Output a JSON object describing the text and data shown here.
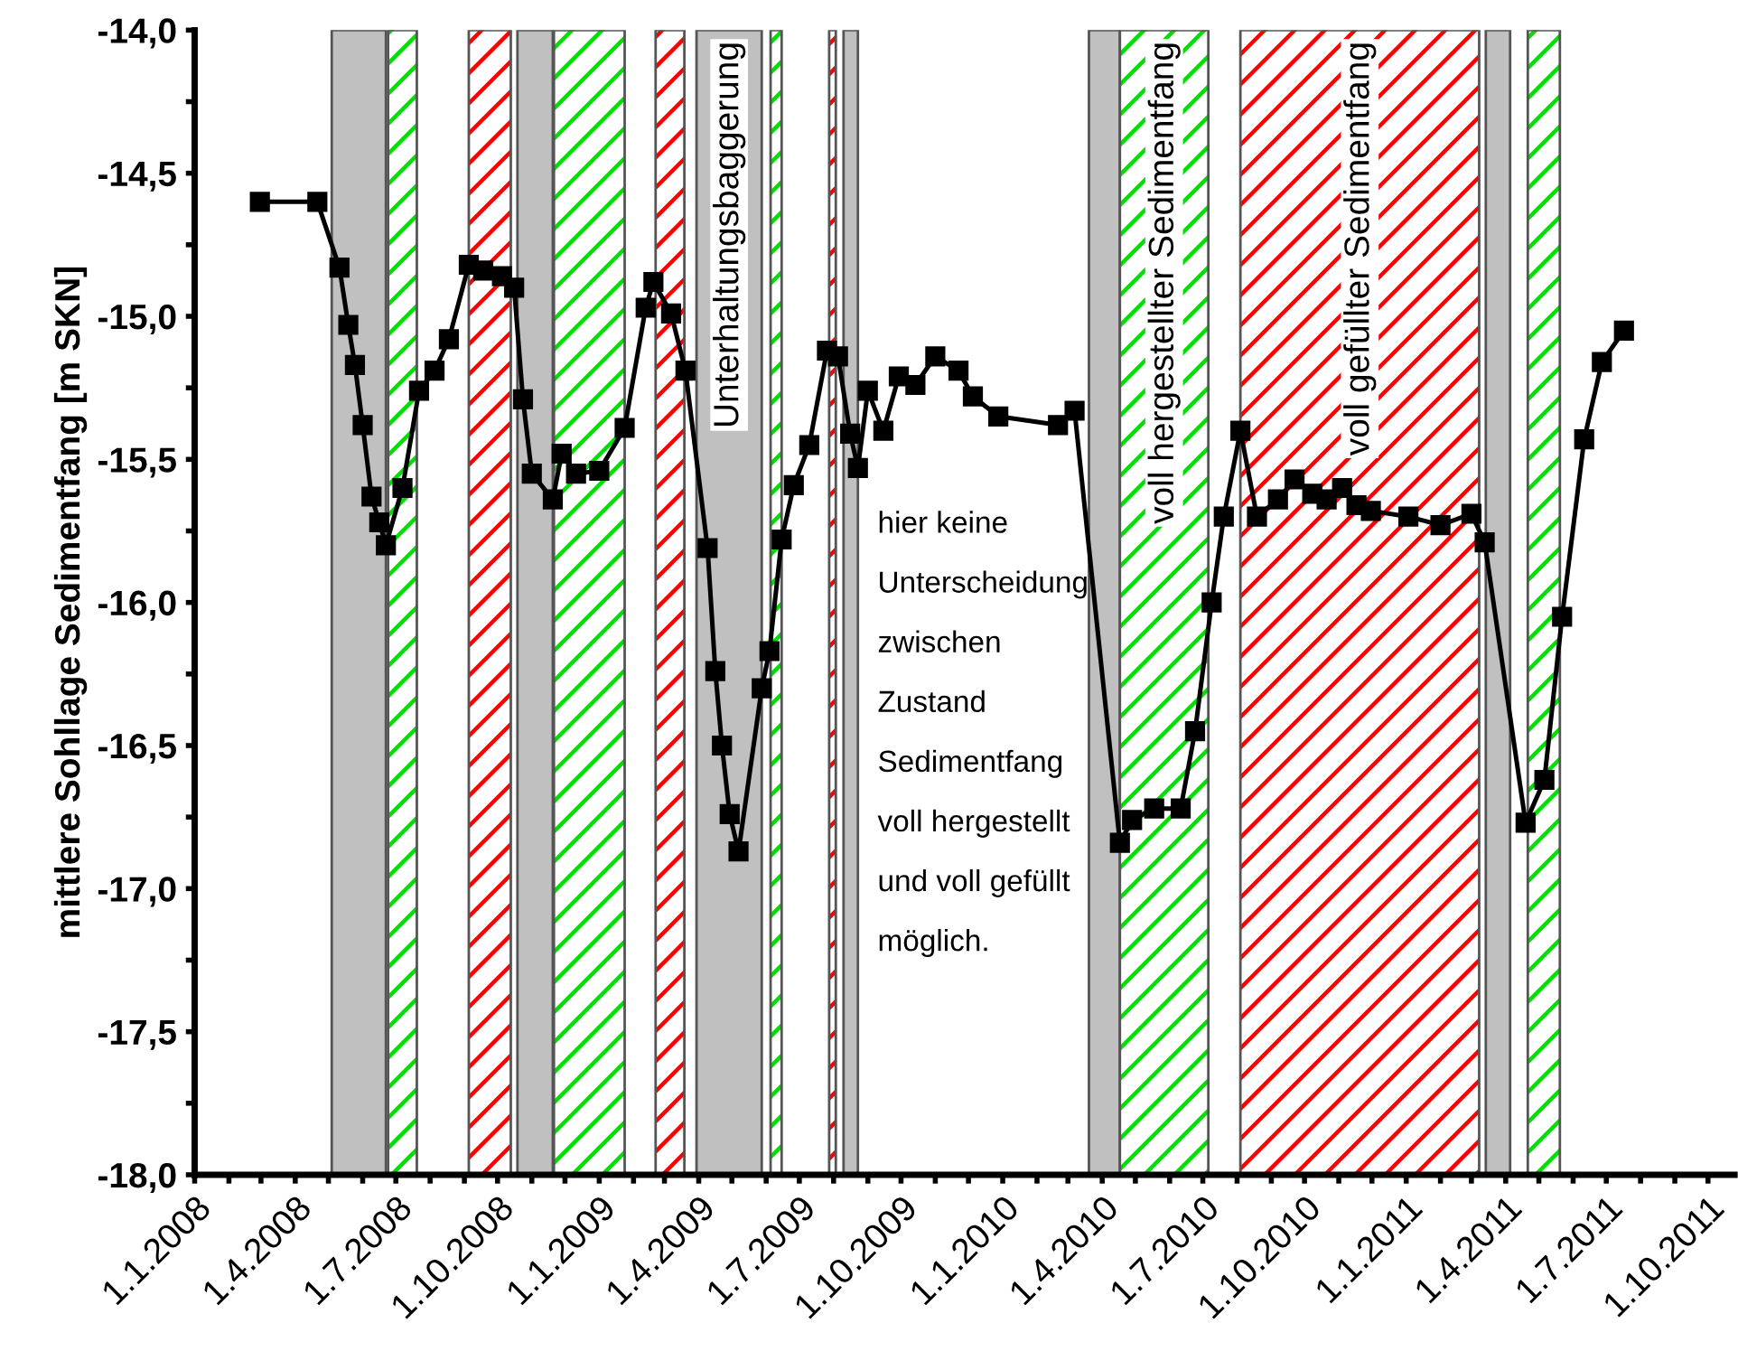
{
  "chart_data": {
    "type": "line",
    "ylabel": "mittlere Sohllage Sedimentfang [m SKN]",
    "x": [
      "2008-02-29",
      "2008-04-21",
      "2008-05-11",
      "2008-05-19",
      "2008-05-25",
      "2008-06-01",
      "2008-06-09",
      "2008-06-16",
      "2008-06-22",
      "2008-07-07",
      "2008-07-22",
      "2008-08-05",
      "2008-08-18",
      "2008-09-05",
      "2008-09-18",
      "2008-10-05",
      "2008-10-16",
      "2008-10-24",
      "2008-11-01",
      "2008-11-20",
      "2008-11-28",
      "2008-12-11",
      "2009-01-01",
      "2009-01-24",
      "2009-02-12",
      "2009-02-19",
      "2009-03-07",
      "2009-03-20",
      "2009-04-09",
      "2009-04-16",
      "2009-04-22",
      "2009-04-29",
      "2009-05-07",
      "2009-05-28",
      "2009-06-04",
      "2009-06-15",
      "2009-06-26",
      "2009-07-10",
      "2009-07-26",
      "2009-08-05",
      "2009-08-16",
      "2009-08-23",
      "2009-09-01",
      "2009-09-15",
      "2009-09-29",
      "2009-10-14",
      "2009-11-01",
      "2009-11-22",
      "2009-12-05",
      "2009-12-28",
      "2010-02-20",
      "2010-03-07",
      "2010-04-17",
      "2010-04-28",
      "2010-05-18",
      "2010-06-11",
      "2010-06-24",
      "2010-07-09",
      "2010-07-20",
      "2010-08-04",
      "2010-08-19",
      "2010-09-07",
      "2010-09-22",
      "2010-10-08",
      "2010-10-21",
      "2010-11-04",
      "2010-11-17",
      "2010-11-30",
      "2011-01-03",
      "2011-02-01",
      "2011-03-01",
      "2011-03-13",
      "2011-04-19",
      "2011-05-06",
      "2011-05-22",
      "2011-06-11",
      "2011-06-27",
      "2011-07-17"
    ],
    "series": [
      {
        "color": "#000000",
        "values": [
          -14.6,
          -14.6,
          -14.83,
          -15.03,
          -15.17,
          -15.38,
          -15.63,
          -15.72,
          -15.8,
          -15.6,
          -15.26,
          -15.19,
          -15.08,
          -14.82,
          -14.84,
          -14.86,
          -14.9,
          -15.29,
          -15.55,
          -15.64,
          -15.48,
          -15.55,
          -15.54,
          -15.39,
          -14.97,
          -14.88,
          -14.99,
          -15.19,
          -15.81,
          -16.24,
          -16.5,
          -16.74,
          -16.87,
          -16.3,
          -16.17,
          -15.78,
          -15.59,
          -15.45,
          -15.12,
          -15.14,
          -15.41,
          -15.53,
          -15.26,
          -15.4,
          -15.21,
          -15.24,
          -15.14,
          -15.19,
          -15.28,
          -15.35,
          -15.38,
          -15.33,
          -16.84,
          -16.76,
          -16.72,
          -16.72,
          -16.45,
          -16.0,
          -15.7,
          -15.4,
          -15.7,
          -15.64,
          -15.57,
          -15.62,
          -15.64,
          -15.6,
          -15.66,
          -15.68,
          -15.7,
          -15.73,
          -15.69,
          -15.79,
          -16.77,
          -16.62,
          -16.05,
          -15.43,
          -15.16,
          -15.05
        ]
      }
    ],
    "marker": "square",
    "line_style": "solid",
    "grid": false,
    "legend": false,
    "xlim": [
      "2008-01-01",
      "2011-10-25"
    ],
    "xticks": [
      {
        "value": "2008-01-01",
        "label": "1.1.2008"
      },
      {
        "value": "2008-02-01",
        "label": null
      },
      {
        "value": "2008-03-01",
        "label": null
      },
      {
        "value": "2008-04-01",
        "label": "1.4.2008"
      },
      {
        "value": "2008-05-01",
        "label": null
      },
      {
        "value": "2008-06-01",
        "label": null
      },
      {
        "value": "2008-07-01",
        "label": "1.7.2008"
      },
      {
        "value": "2008-08-01",
        "label": null
      },
      {
        "value": "2008-09-01",
        "label": null
      },
      {
        "value": "2008-10-01",
        "label": "1.10.2008"
      },
      {
        "value": "2008-11-01",
        "label": null
      },
      {
        "value": "2008-12-01",
        "label": null
      },
      {
        "value": "2009-01-01",
        "label": "1.1.2009"
      },
      {
        "value": "2009-02-01",
        "label": null
      },
      {
        "value": "2009-03-01",
        "label": null
      },
      {
        "value": "2009-04-01",
        "label": "1.4.2009"
      },
      {
        "value": "2009-05-01",
        "label": null
      },
      {
        "value": "2009-06-01",
        "label": null
      },
      {
        "value": "2009-07-01",
        "label": "1.7.2009"
      },
      {
        "value": "2009-08-01",
        "label": null
      },
      {
        "value": "2009-09-01",
        "label": null
      },
      {
        "value": "2009-10-01",
        "label": "1.10.2009"
      },
      {
        "value": "2009-11-01",
        "label": null
      },
      {
        "value": "2009-12-01",
        "label": null
      },
      {
        "value": "2010-01-01",
        "label": "1.1.2010"
      },
      {
        "value": "2010-02-01",
        "label": null
      },
      {
        "value": "2010-03-01",
        "label": null
      },
      {
        "value": "2010-04-01",
        "label": "1.4.2010"
      },
      {
        "value": "2010-05-01",
        "label": null
      },
      {
        "value": "2010-06-01",
        "label": null
      },
      {
        "value": "2010-07-01",
        "label": "1.7.2010"
      },
      {
        "value": "2010-08-01",
        "label": null
      },
      {
        "value": "2010-09-01",
        "label": null
      },
      {
        "value": "2010-10-01",
        "label": "1.10.2010"
      },
      {
        "value": "2010-11-01",
        "label": null
      },
      {
        "value": "2010-12-01",
        "label": null
      },
      {
        "value": "2011-01-01",
        "label": "1.1.2011"
      },
      {
        "value": "2011-02-01",
        "label": null
      },
      {
        "value": "2011-03-01",
        "label": null
      },
      {
        "value": "2011-04-01",
        "label": "1.4.2011"
      },
      {
        "value": "2011-05-01",
        "label": null
      },
      {
        "value": "2011-06-01",
        "label": null
      },
      {
        "value": "2011-07-01",
        "label": "1.7.2011"
      },
      {
        "value": "2011-08-01",
        "label": null
      },
      {
        "value": "2011-09-01",
        "label": null
      },
      {
        "value": "2011-10-01",
        "label": "1.10.2011"
      }
    ],
    "ylim": [
      -18,
      -14
    ],
    "yticks": [
      {
        "value": -18,
        "label": "-18,0"
      },
      {
        "value": -17.75,
        "label": null
      },
      {
        "value": -17.5,
        "label": "-17,5"
      },
      {
        "value": -17.25,
        "label": null
      },
      {
        "value": -17,
        "label": "-17,0"
      },
      {
        "value": -16.75,
        "label": null
      },
      {
        "value": -16.5,
        "label": "-16,5"
      },
      {
        "value": -16.25,
        "label": null
      },
      {
        "value": -16,
        "label": "-16,0"
      },
      {
        "value": -15.75,
        "label": null
      },
      {
        "value": -15.5,
        "label": "-15,5"
      },
      {
        "value": -15.25,
        "label": null
      },
      {
        "value": -15,
        "label": "-15,0"
      },
      {
        "value": -14.75,
        "label": null
      },
      {
        "value": -14.5,
        "label": "-14,5"
      },
      {
        "value": -14.25,
        "label": null
      },
      {
        "value": -14,
        "label": "-14,0"
      }
    ],
    "bands": [
      {
        "axis": "x",
        "from": "2008-05-04",
        "to": "2008-06-22",
        "color": "#c0c0c0"
      },
      {
        "axis": "x",
        "from": "2008-06-24",
        "to": "2008-07-20",
        "color": "#00e000"
      },
      {
        "axis": "x",
        "from": "2008-09-05",
        "to": "2008-10-13",
        "color": "#ff0000"
      },
      {
        "axis": "x",
        "from": "2008-10-19",
        "to": "2008-11-20",
        "color": "#c0c0c0"
      },
      {
        "axis": "x",
        "from": "2008-11-21",
        "to": "2009-01-24",
        "color": "#00e000"
      },
      {
        "axis": "x",
        "from": "2009-02-21",
        "to": "2009-03-19",
        "color": "#ff0000"
      },
      {
        "axis": "x",
        "from": "2009-03-30",
        "to": "2009-05-28",
        "color": "#c0c0c0",
        "label": "Unterhaltungsbaggerung"
      },
      {
        "axis": "x",
        "from": "2009-06-05",
        "to": "2009-06-15",
        "color": "#00e000"
      },
      {
        "axis": "x",
        "from": "2009-07-28",
        "to": "2009-08-03",
        "color": "#ff0000"
      },
      {
        "axis": "x",
        "from": "2009-08-10",
        "to": "2009-08-23",
        "color": "#c0c0c0"
      },
      {
        "axis": "x",
        "from": "2010-03-20",
        "to": "2010-04-17",
        "color": "#c0c0c0"
      },
      {
        "axis": "x",
        "from": "2010-04-17",
        "to": "2010-07-06",
        "color": "#00e000",
        "label": "voll hergestellter Sedimentfang"
      },
      {
        "axis": "x",
        "from": "2010-08-04",
        "to": "2011-03-08",
        "color": "#ff0000",
        "label": "voll gefüllter Sedimentfang"
      },
      {
        "axis": "x",
        "from": "2011-03-14",
        "to": "2011-04-05",
        "color": "#c0c0c0"
      },
      {
        "axis": "x",
        "from": "2011-04-21",
        "to": "2011-05-20",
        "color": "#00e000"
      }
    ],
    "annotations": [
      "hier keine\nUnterscheidung\nzwischen\nZustand\nSedimentfang\nvoll hergestellt\nund voll gefüllt\nmöglich."
    ]
  }
}
